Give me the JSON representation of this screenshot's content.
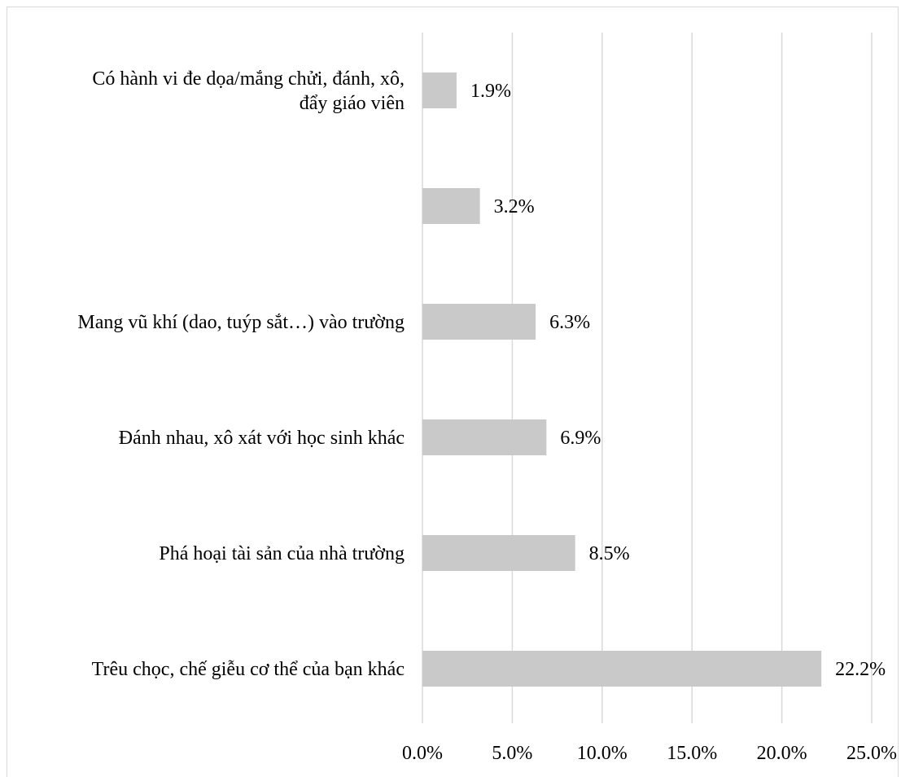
{
  "chart_data": {
    "type": "bar",
    "orientation": "horizontal",
    "categories": [
      [
        "Có hành vi đe dọa/mắng chửi, đánh, xô,",
        "đẩy giáo viên"
      ],
      [
        ""
      ],
      [
        "Mang vũ khí (dao, tuýp sắt…) vào trường"
      ],
      [
        "Đánh nhau, xô xát với học sinh khác"
      ],
      [
        "Phá hoại tài sản của nhà trường"
      ],
      [
        "Trêu chọc, chế giễu cơ thể của bạn khác"
      ]
    ],
    "values": [
      1.9,
      3.2,
      6.3,
      6.9,
      8.5,
      22.2
    ],
    "value_labels": [
      "1.9%",
      "3.2%",
      "6.3%",
      "6.9%",
      "8.5%",
      "22.2%"
    ],
    "xlim": [
      0,
      25
    ],
    "ticks": [
      0,
      5,
      10,
      15,
      20,
      25
    ],
    "tick_labels": [
      "0.0%",
      "5.0%",
      "10.0%",
      "15.0%",
      "20.0%",
      "25.0%"
    ],
    "grid": true,
    "bar_color": "#c9c9c9",
    "grid_color": "#d9d9d9"
  }
}
